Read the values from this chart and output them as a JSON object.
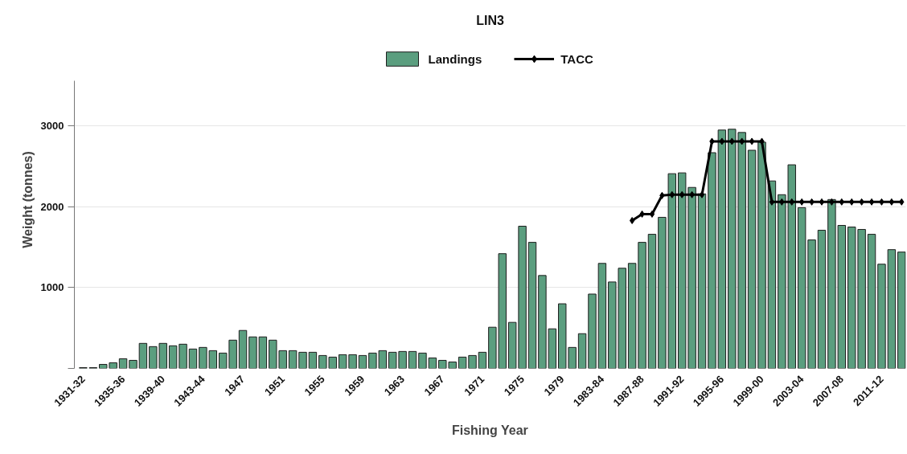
{
  "chart_data": {
    "type": "bar",
    "title": "LIN3",
    "xlabel": "Fishing Year",
    "ylabel": "Weight (tonnes)",
    "categories": [
      "1931-32",
      null,
      null,
      null,
      "1935-36",
      null,
      null,
      null,
      "1939-40",
      null,
      null,
      null,
      "1943-44",
      null,
      null,
      null,
      "1947",
      null,
      null,
      null,
      "1951",
      null,
      null,
      null,
      "1955",
      null,
      null,
      null,
      "1959",
      null,
      null,
      null,
      "1963",
      null,
      null,
      null,
      "1967",
      null,
      null,
      null,
      "1971",
      null,
      null,
      null,
      "1975",
      null,
      null,
      null,
      "1979",
      null,
      null,
      null,
      "1983-84",
      null,
      null,
      null,
      "1987-88",
      null,
      null,
      null,
      "1991-92",
      null,
      null,
      null,
      "1995-96",
      null,
      null,
      null,
      "1999-00",
      null,
      null,
      null,
      "2003-04",
      null,
      null,
      null,
      "2007-08",
      null,
      null,
      null,
      "2011-12",
      null,
      null
    ],
    "series": [
      {
        "name": "Landings",
        "color": "#5b9e7f",
        "values": [
          10,
          10,
          50,
          70,
          120,
          100,
          310,
          270,
          310,
          280,
          300,
          240,
          260,
          220,
          190,
          350,
          470,
          390,
          390,
          350,
          220,
          220,
          200,
          200,
          160,
          140,
          170,
          170,
          160,
          190,
          220,
          200,
          210,
          210,
          190,
          130,
          100,
          80,
          140,
          160,
          200,
          510,
          1420,
          570,
          1760,
          1560,
          1150,
          490,
          800,
          260,
          430,
          920,
          1300,
          1070,
          1240,
          1300,
          1560,
          1660,
          1870,
          2410,
          2420,
          2240,
          2160,
          2670,
          2950,
          2960,
          2920,
          2700,
          2800,
          2320,
          2150,
          2520,
          1990,
          1590,
          1710,
          2090,
          1770,
          1750,
          1720,
          1660,
          1290,
          1470,
          1440
        ]
      },
      {
        "name": "TACC",
        "type": "line",
        "color": "#000000",
        "values": [
          null,
          null,
          null,
          null,
          null,
          null,
          null,
          null,
          null,
          null,
          null,
          null,
          null,
          null,
          null,
          null,
          null,
          null,
          null,
          null,
          null,
          null,
          null,
          null,
          null,
          null,
          null,
          null,
          null,
          null,
          null,
          null,
          null,
          null,
          null,
          null,
          null,
          null,
          null,
          null,
          null,
          null,
          null,
          null,
          null,
          null,
          null,
          null,
          null,
          null,
          null,
          null,
          null,
          null,
          null,
          1830,
          1910,
          1910,
          2140,
          2150,
          2150,
          2150,
          2150,
          2810,
          2810,
          2810,
          2810,
          2810,
          2810,
          2060,
          2060,
          2060,
          2060,
          2060,
          2060,
          2060,
          2060,
          2060,
          2060,
          2060,
          2060,
          2060,
          2060
        ]
      }
    ],
    "ylim": [
      0,
      3560
    ],
    "yticks": [
      {
        "value": 0,
        "label": null
      },
      1000,
      2000,
      3000
    ],
    "grid": "y",
    "legend": "top",
    "marker": "diamond"
  }
}
